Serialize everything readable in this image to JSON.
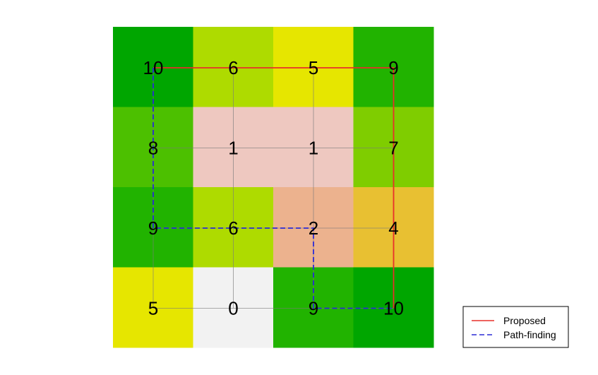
{
  "grid": {
    "rows": [
      [
        10,
        6,
        5,
        9
      ],
      [
        8,
        1,
        1,
        7
      ],
      [
        9,
        6,
        2,
        4
      ],
      [
        5,
        0,
        9,
        10
      ]
    ],
    "colors": [
      [
        "#00a600",
        "#aedb00",
        "#e6e600",
        "#21b300"
      ],
      [
        "#4cc000",
        "#eec8c0",
        "#eec8c0",
        "#7fcd00"
      ],
      [
        "#21b300",
        "#aedb00",
        "#ecb28e",
        "#e8c032"
      ],
      [
        "#e6e600",
        "#f2f2f2",
        "#21b300",
        "#00a600"
      ]
    ]
  },
  "paths": {
    "proposed": {
      "label": "Proposed",
      "color": "#e8302a",
      "cells": [
        [
          0,
          0
        ],
        [
          0,
          1
        ],
        [
          0,
          2
        ],
        [
          0,
          3
        ],
        [
          1,
          3
        ],
        [
          2,
          3
        ],
        [
          3,
          3
        ]
      ]
    },
    "path_finding": {
      "label": "Path-finding",
      "color": "#2b2bd6",
      "cells": [
        [
          0,
          0
        ],
        [
          1,
          0
        ],
        [
          2,
          0
        ],
        [
          2,
          1
        ],
        [
          2,
          2
        ],
        [
          3,
          2
        ],
        [
          3,
          3
        ]
      ]
    }
  },
  "legend": {
    "proposed_label": "Proposed",
    "path_finding_label": "Path-finding"
  }
}
